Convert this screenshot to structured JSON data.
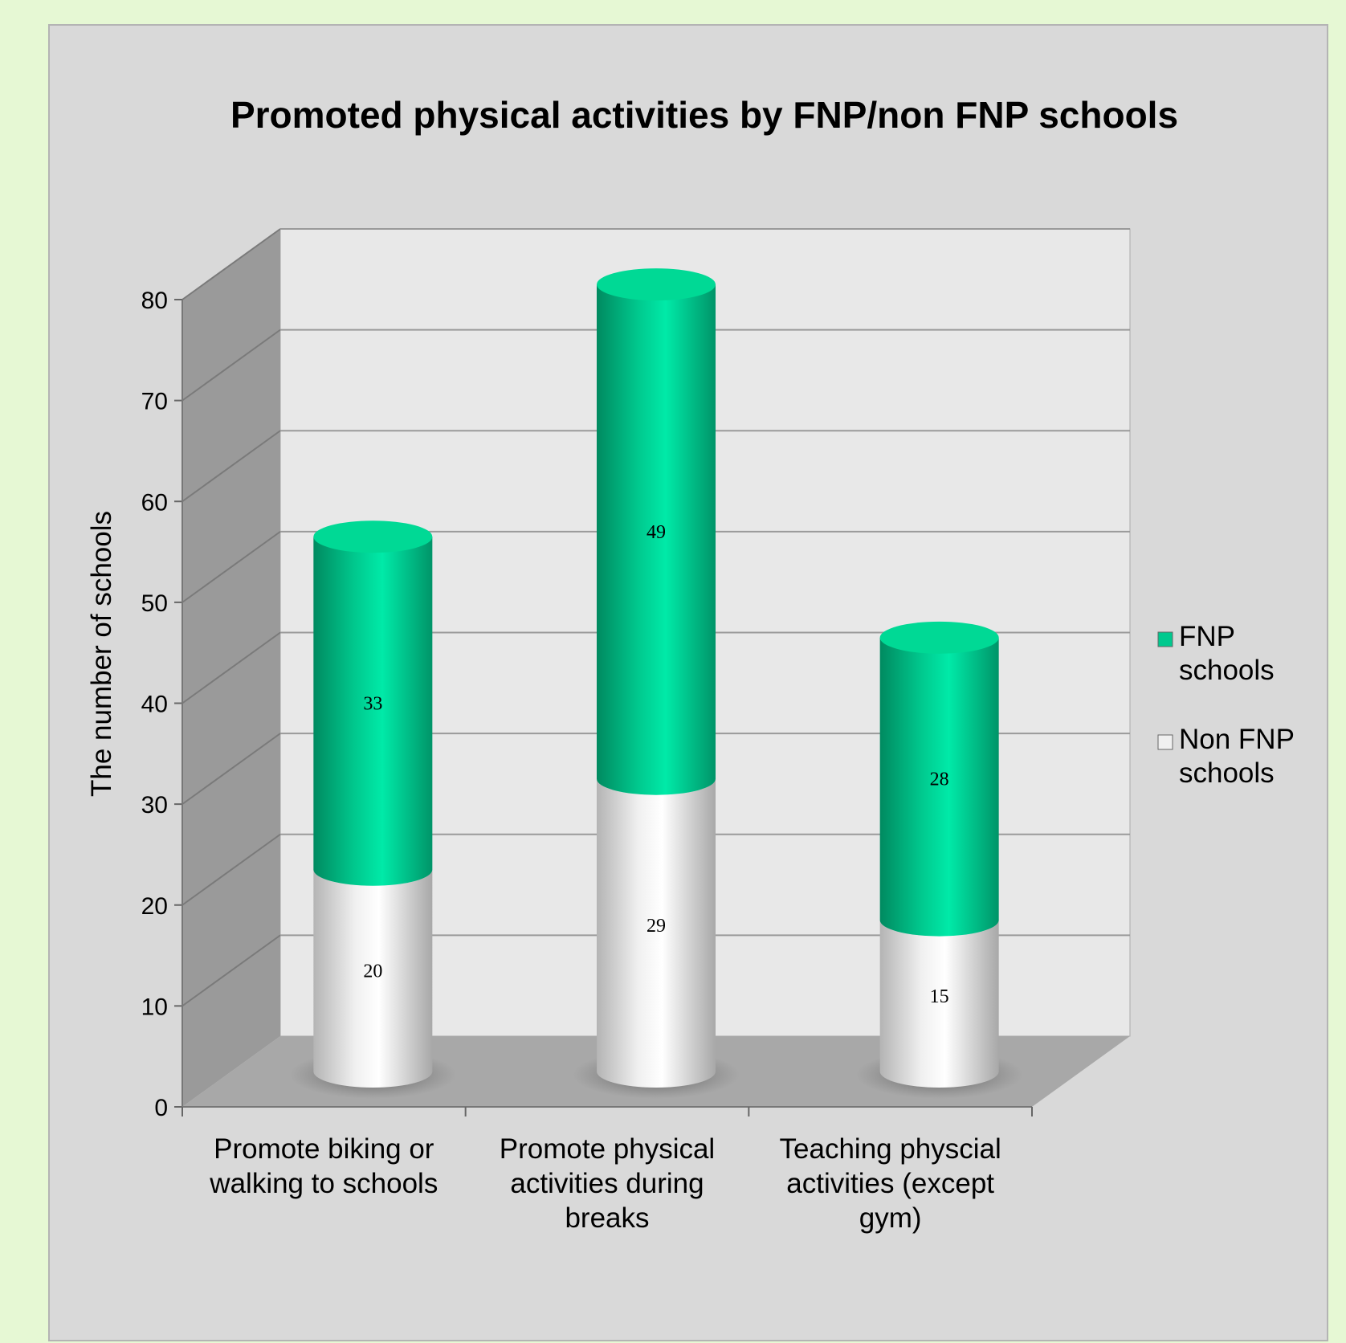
{
  "chart_data": {
    "type": "bar",
    "stacked": true,
    "three_d": true,
    "bar_shape": "cylinder",
    "title": "Promoted physical activities by FNP/non FNP schools",
    "ylabel": "The number of schools",
    "xlabel": "",
    "ylim": [
      0,
      80
    ],
    "yticks": [
      0,
      10,
      20,
      30,
      40,
      50,
      60,
      70,
      80
    ],
    "grid": true,
    "legend_position": "right",
    "categories": [
      [
        "Promote biking or",
        "walking to schools"
      ],
      [
        "Promote physical",
        "activities during",
        "breaks"
      ],
      [
        "Teaching physcial",
        "activities (except",
        "gym)"
      ]
    ],
    "series": [
      {
        "name": [
          "Non FNP",
          "schools"
        ],
        "values": [
          20,
          29,
          15
        ],
        "color": "#f0f0f0"
      },
      {
        "name": [
          "FNP",
          "schools"
        ],
        "values": [
          33,
          49,
          28
        ],
        "color": "#00c98e"
      }
    ]
  }
}
